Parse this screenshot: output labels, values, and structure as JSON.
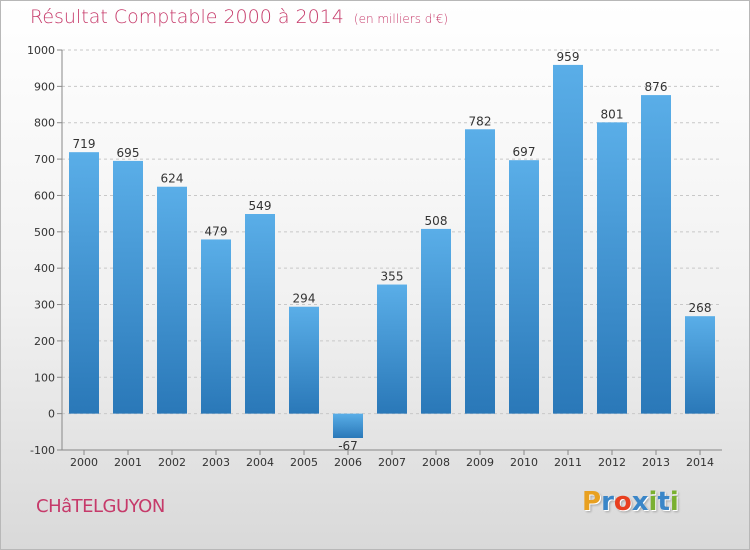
{
  "title": "Résultat Comptable 2000 à 2014",
  "unit_note": "(en milliers d'€)",
  "commune": "CHâTELGUYON",
  "logo": {
    "letters": [
      "P",
      "r",
      "o",
      "x",
      "i",
      "t",
      "i"
    ],
    "colors": [
      "#e8a020",
      "#3a86c8",
      "#e84020",
      "#3a86c8",
      "#7ab030",
      "#3a86c8",
      "#7ab030"
    ]
  },
  "colors": {
    "bar_top": "#5aaee8",
    "bar_bottom": "#2a78b8",
    "title": "#c63a6a"
  },
  "chart_data": {
    "type": "bar",
    "categories": [
      "2000",
      "2001",
      "2002",
      "2003",
      "2004",
      "2005",
      "2006",
      "2007",
      "2008",
      "2009",
      "2010",
      "2011",
      "2012",
      "2013",
      "2014"
    ],
    "values": [
      719,
      695,
      624,
      479,
      549,
      294,
      -67,
      355,
      508,
      782,
      697,
      959,
      801,
      876,
      268
    ],
    "ylim": [
      -100,
      1000
    ],
    "yticks": [
      -100,
      0,
      100,
      200,
      300,
      400,
      500,
      600,
      700,
      800,
      900,
      1000
    ],
    "grid": "horizontal dashed"
  }
}
